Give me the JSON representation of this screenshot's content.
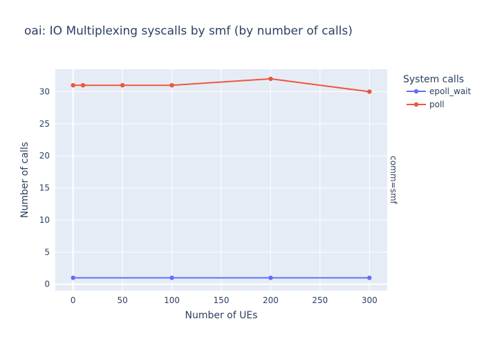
{
  "chart_data": {
    "type": "line",
    "title": "oai: IO Multiplexing syscalls by smf (by number of calls)",
    "xlabel": "Number of UEs",
    "ylabel": "Number of calls",
    "facet_label": "comm=smf",
    "xlim": [
      -18,
      318
    ],
    "ylim": [
      -1,
      33.5
    ],
    "xticks": [
      0,
      50,
      100,
      150,
      200,
      250,
      300
    ],
    "yticks": [
      0,
      5,
      10,
      15,
      20,
      25,
      30
    ],
    "grid": true,
    "legend": {
      "title": "System calls",
      "placement": "top-right, outside plot"
    },
    "series": [
      {
        "name": "epoll_wait",
        "color": "#636efa",
        "x": [
          0,
          100,
          200,
          300
        ],
        "y": [
          1,
          1,
          1,
          1
        ]
      },
      {
        "name": "poll",
        "color": "#ef553b",
        "x": [
          0,
          10,
          50,
          100,
          200,
          300
        ],
        "y": [
          31,
          31,
          31,
          31,
          32,
          30
        ]
      }
    ]
  }
}
